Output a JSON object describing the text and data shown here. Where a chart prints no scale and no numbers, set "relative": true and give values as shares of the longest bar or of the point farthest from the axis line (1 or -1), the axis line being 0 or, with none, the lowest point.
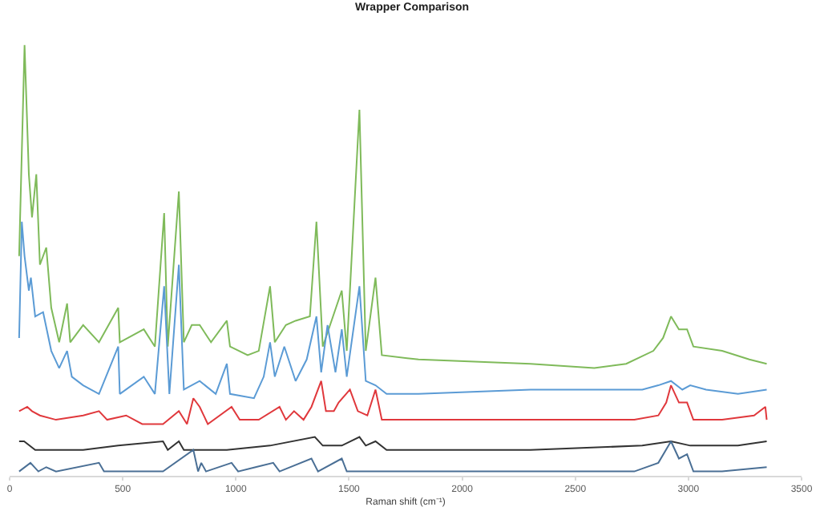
{
  "chart_data": {
    "type": "line",
    "title": "Wrapper Comparison",
    "xlabel": "Raman shift (cm⁻¹)",
    "relative": true,
    "xlim": [
      0,
      3500
    ],
    "xticks": [
      0,
      500,
      1000,
      1500,
      2000,
      2500,
      3000,
      3500
    ],
    "tick_labels": "x",
    "marker": "none",
    "line_style": "solid",
    "series": [
      {
        "color": "#7fba5a",
        "x": [
          42,
          66,
          85,
          99,
          118,
          134,
          162,
          184,
          219,
          254,
          268,
          325,
          395,
          480,
          487,
          593,
          642,
          683,
          699,
          748,
          770,
          805,
          840,
          890,
          960,
          974,
          1052,
          1101,
          1151,
          1172,
          1221,
          1264,
          1327,
          1356,
          1384,
          1468,
          1490,
          1546,
          1574,
          1617,
          1645,
          1807,
          2302,
          2584,
          2725,
          2845,
          2888,
          2923,
          2958,
          2994,
          3022,
          3149,
          3269,
          3346
        ],
        "values": [
          0.51,
          1.0,
          0.7,
          0.6,
          0.7,
          0.49,
          0.53,
          0.39,
          0.31,
          0.4,
          0.31,
          0.35,
          0.31,
          0.39,
          0.31,
          0.34,
          0.3,
          0.61,
          0.3,
          0.66,
          0.31,
          0.35,
          0.35,
          0.31,
          0.36,
          0.3,
          0.28,
          0.29,
          0.44,
          0.31,
          0.35,
          0.36,
          0.37,
          0.59,
          0.3,
          0.43,
          0.29,
          0.85,
          0.29,
          0.46,
          0.28,
          0.27,
          0.26,
          0.25,
          0.26,
          0.29,
          0.32,
          0.37,
          0.34,
          0.34,
          0.3,
          0.29,
          0.27,
          0.26
        ]
      },
      {
        "color": "#5b9bd5",
        "x": [
          42,
          54,
          66,
          85,
          94,
          113,
          148,
          184,
          219,
          254,
          275,
          325,
          395,
          480,
          487,
          593,
          642,
          683,
          706,
          748,
          770,
          840,
          911,
          960,
          974,
          1080,
          1123,
          1151,
          1172,
          1214,
          1264,
          1313,
          1356,
          1377,
          1405,
          1440,
          1468,
          1490,
          1546,
          1574,
          1617,
          1666,
          1807,
          2302,
          2796,
          2867,
          2923,
          2973,
          3008,
          3078,
          3219,
          3346
        ],
        "values": [
          0.32,
          0.59,
          0.51,
          0.43,
          0.46,
          0.37,
          0.38,
          0.29,
          0.25,
          0.29,
          0.23,
          0.21,
          0.19,
          0.3,
          0.19,
          0.23,
          0.19,
          0.44,
          0.19,
          0.49,
          0.2,
          0.22,
          0.19,
          0.26,
          0.19,
          0.18,
          0.23,
          0.31,
          0.23,
          0.3,
          0.22,
          0.27,
          0.37,
          0.24,
          0.35,
          0.24,
          0.34,
          0.23,
          0.44,
          0.22,
          0.21,
          0.19,
          0.19,
          0.2,
          0.2,
          0.21,
          0.22,
          0.2,
          0.21,
          0.2,
          0.19,
          0.2
        ]
      },
      {
        "color": "#e0383c",
        "x": [
          42,
          78,
          99,
          134,
          205,
          325,
          395,
          431,
          515,
          586,
          678,
          748,
          784,
          812,
          840,
          876,
          981,
          1017,
          1101,
          1193,
          1221,
          1257,
          1299,
          1334,
          1377,
          1398,
          1433,
          1454,
          1504,
          1539,
          1581,
          1617,
          1645,
          1807,
          2302,
          2761,
          2867,
          2902,
          2923,
          2958,
          2994,
          3022,
          3149,
          3290,
          3340,
          3346
        ],
        "values": [
          0.15,
          0.16,
          0.15,
          0.14,
          0.13,
          0.14,
          0.15,
          0.13,
          0.14,
          0.12,
          0.12,
          0.15,
          0.12,
          0.18,
          0.16,
          0.12,
          0.16,
          0.13,
          0.13,
          0.16,
          0.13,
          0.15,
          0.13,
          0.16,
          0.22,
          0.15,
          0.15,
          0.17,
          0.2,
          0.15,
          0.14,
          0.2,
          0.13,
          0.13,
          0.13,
          0.13,
          0.14,
          0.17,
          0.21,
          0.17,
          0.17,
          0.13,
          0.13,
          0.14,
          0.16,
          0.13
        ]
      },
      {
        "color": "#333333",
        "x": [
          42,
          64,
          113,
          325,
          480,
          678,
          699,
          748,
          770,
          960,
          1151,
          1349,
          1384,
          1468,
          1546,
          1574,
          1617,
          1666,
          2302,
          2796,
          2923,
          3008,
          3078,
          3219,
          3346
        ],
        "values": [
          0.08,
          0.08,
          0.06,
          0.06,
          0.07,
          0.08,
          0.06,
          0.08,
          0.06,
          0.06,
          0.07,
          0.09,
          0.07,
          0.07,
          0.09,
          0.07,
          0.08,
          0.06,
          0.06,
          0.07,
          0.08,
          0.07,
          0.07,
          0.07,
          0.08
        ]
      },
      {
        "color": "#4a6f95",
        "x": [
          42,
          92,
          127,
          162,
          205,
          395,
          417,
          515,
          678,
          812,
          833,
          847,
          868,
          981,
          1010,
          1087,
          1165,
          1193,
          1334,
          1363,
          1468,
          1490,
          1807,
          2302,
          2761,
          2867,
          2923,
          2958,
          2994,
          3022,
          3149,
          3346
        ],
        "values": [
          0.01,
          0.03,
          0.01,
          0.02,
          0.01,
          0.03,
          0.01,
          0.01,
          0.01,
          0.06,
          0.01,
          0.03,
          0.01,
          0.03,
          0.01,
          0.02,
          0.03,
          0.01,
          0.04,
          0.01,
          0.04,
          0.01,
          0.01,
          0.01,
          0.01,
          0.03,
          0.08,
          0.04,
          0.05,
          0.01,
          0.01,
          0.02
        ]
      }
    ]
  }
}
